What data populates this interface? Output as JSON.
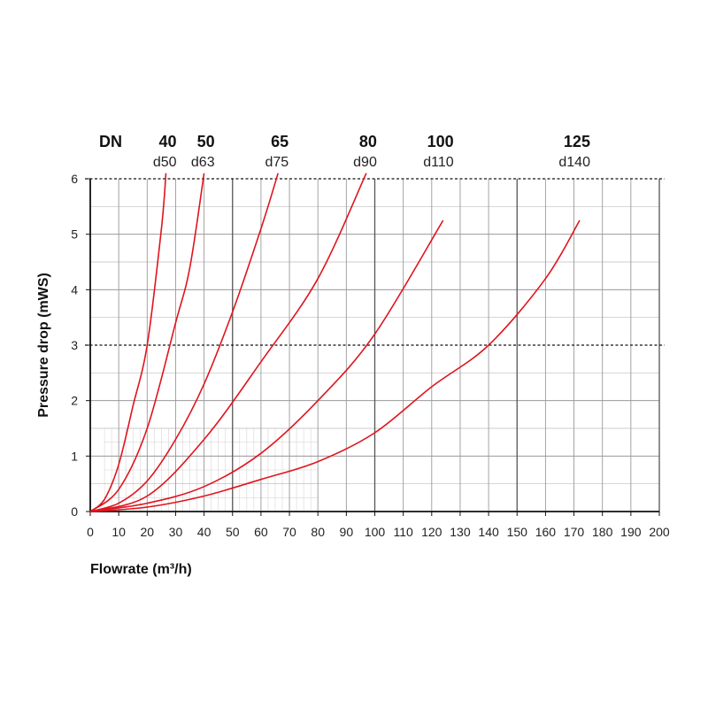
{
  "chart_data": {
    "type": "line",
    "xlabel": "Flowrate (m³/h)",
    "ylabel": "Pressure drop (mWS)",
    "xlim": [
      0,
      200
    ],
    "ylim": [
      0,
      6
    ],
    "x_ticks": [
      0,
      10,
      20,
      30,
      40,
      50,
      60,
      70,
      80,
      90,
      100,
      110,
      120,
      130,
      140,
      150,
      160,
      170,
      180,
      190,
      200
    ],
    "y_ticks": [
      0,
      1,
      2,
      3,
      4,
      5,
      6
    ],
    "dashed_reference_lines_y": [
      3,
      6
    ],
    "grid": true,
    "header_label": "DN",
    "line_color": "#e0141e",
    "series": [
      {
        "dn": "40",
        "d": "d50",
        "points": [
          [
            0,
            0
          ],
          [
            5,
            0.22
          ],
          [
            10,
            0.85
          ],
          [
            15,
            1.9
          ],
          [
            20,
            3.0
          ],
          [
            25,
            5.1
          ],
          [
            26.6,
            6.1
          ]
        ]
      },
      {
        "dn": "50",
        "d": "d63",
        "points": [
          [
            0,
            0
          ],
          [
            10,
            0.4
          ],
          [
            20,
            1.5
          ],
          [
            30,
            3.4
          ],
          [
            35,
            4.4
          ],
          [
            40,
            6.1
          ]
        ]
      },
      {
        "dn": "65",
        "d": "d75",
        "points": [
          [
            0,
            0
          ],
          [
            10,
            0.15
          ],
          [
            20,
            0.55
          ],
          [
            30,
            1.3
          ],
          [
            40,
            2.3
          ],
          [
            50,
            3.6
          ],
          [
            60,
            5.1
          ],
          [
            66,
            6.1
          ]
        ]
      },
      {
        "dn": "80",
        "d": "d90",
        "points": [
          [
            0,
            0
          ],
          [
            20,
            0.28
          ],
          [
            40,
            1.3
          ],
          [
            60,
            2.7
          ],
          [
            80,
            4.2
          ],
          [
            97,
            6.1
          ]
        ]
      },
      {
        "dn": "100",
        "d": "d110",
        "points": [
          [
            0,
            0
          ],
          [
            20,
            0.15
          ],
          [
            40,
            0.45
          ],
          [
            60,
            1.05
          ],
          [
            80,
            2.0
          ],
          [
            100,
            3.2
          ],
          [
            124,
            5.25
          ]
        ]
      },
      {
        "dn": "125",
        "d": "d140",
        "points": [
          [
            0,
            0
          ],
          [
            20,
            0.08
          ],
          [
            40,
            0.28
          ],
          [
            60,
            0.58
          ],
          [
            80,
            0.9
          ],
          [
            100,
            1.42
          ],
          [
            120,
            2.25
          ],
          [
            140,
            3.0
          ],
          [
            160,
            4.2
          ],
          [
            172,
            5.25
          ]
        ]
      }
    ]
  }
}
